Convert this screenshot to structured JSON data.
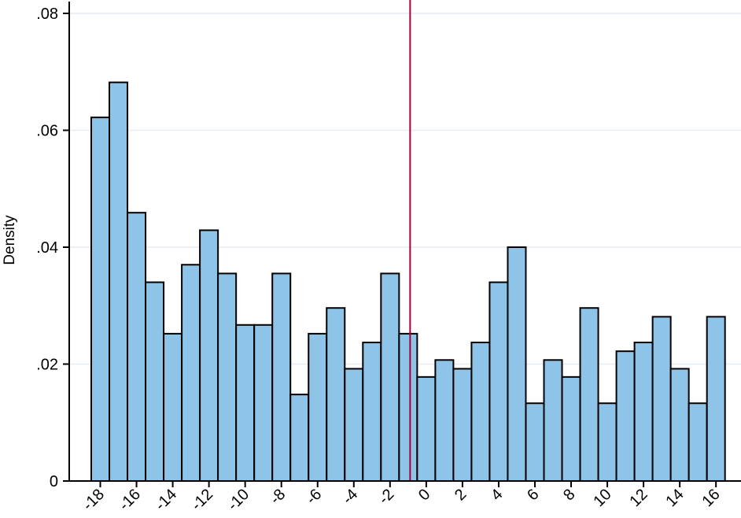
{
  "chart_data": {
    "type": "bar",
    "title": "",
    "xlabel": "",
    "ylabel": "Density",
    "ylim": [
      0,
      0.08
    ],
    "yticks": [
      {
        "value": 0,
        "label": "0"
      },
      {
        "value": 0.02,
        "label": ".02"
      },
      {
        "value": 0.04,
        "label": ".04"
      },
      {
        "value": 0.06,
        "label": ".06"
      },
      {
        "value": 0.08,
        "label": ".08"
      }
    ],
    "xticks": [
      {
        "value": -18,
        "label": "-18"
      },
      {
        "value": -16,
        "label": "-16"
      },
      {
        "value": -14,
        "label": "-14"
      },
      {
        "value": -12,
        "label": "-12"
      },
      {
        "value": -10,
        "label": "-10"
      },
      {
        "value": -8,
        "label": "-8"
      },
      {
        "value": -6,
        "label": "-6"
      },
      {
        "value": -4,
        "label": "-4"
      },
      {
        "value": -2,
        "label": "-2"
      },
      {
        "value": 0,
        "label": "0"
      },
      {
        "value": 2,
        "label": "2"
      },
      {
        "value": 4,
        "label": "4"
      },
      {
        "value": 6,
        "label": "6"
      },
      {
        "value": 8,
        "label": "8"
      },
      {
        "value": 10,
        "label": "10"
      },
      {
        "value": 12,
        "label": "12"
      },
      {
        "value": 14,
        "label": "14"
      },
      {
        "value": 16,
        "label": "16"
      }
    ],
    "bin_width": 1,
    "bin_left_edges": [
      -18,
      -17,
      -16,
      -15,
      -14,
      -13,
      -12,
      -11,
      -10,
      -9,
      -8,
      -7,
      -6,
      -5,
      -4,
      -3,
      -2,
      -1,
      0,
      1,
      2,
      3,
      4,
      5,
      6,
      7,
      8,
      9,
      10,
      11,
      12,
      13,
      14,
      15,
      16
    ],
    "values": [
      0.0622,
      0.0682,
      0.0459,
      0.034,
      0.0252,
      0.037,
      0.0429,
      0.0355,
      0.0267,
      0.0267,
      0.0355,
      0.0148,
      0.0252,
      0.0296,
      0.0192,
      0.0237,
      0.0355,
      0.0252,
      0.0178,
      0.0207,
      0.0192,
      0.0237,
      0.034,
      0.04,
      0.0133,
      0.0207,
      0.0178,
      0.0296,
      0.0133,
      0.0222,
      0.0237,
      0.0281,
      0.0192,
      0.0133,
      0.0281
    ],
    "vline_x": 0,
    "grid": true,
    "colors": {
      "bar_fill": "#8EC4E8",
      "bar_stroke": "#000000",
      "grid": "#E6ECF0",
      "vline": "#A4003B",
      "axis": "#000000"
    }
  }
}
